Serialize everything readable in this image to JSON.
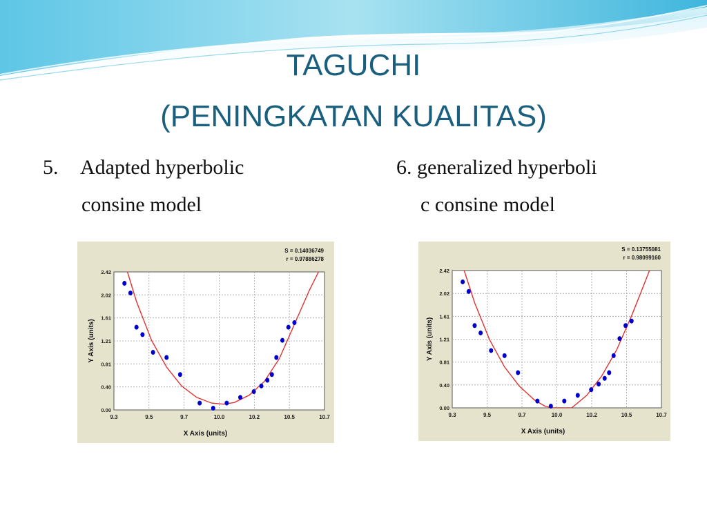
{
  "slide": {
    "title_line1": "TAGUCHI",
    "title_line2": "(PENINGKATAN KUALITAS)"
  },
  "left_caption": {
    "number": "5.",
    "line1": "Adapted hyperbolic",
    "line2": "consine model"
  },
  "right_caption": {
    "line1": "6. generalized hyperboli",
    "line2": "c consine model"
  },
  "colors": {
    "title": "#1b5f7e",
    "chart_panel": "#e6e3cc",
    "point": "#0000cc",
    "curve": "#e03030",
    "grid": "#a0a0a0"
  },
  "chart_data": [
    {
      "type": "scatter",
      "stats": [
        "S = 0.14036749",
        "r = 0.97886278"
      ],
      "xlabel": "X Axis (units)",
      "ylabel": "Y Axis (units)",
      "xlim": [
        9.3,
        10.7
      ],
      "ylim": [
        0.0,
        2.42
      ],
      "xticks": [
        "9.3",
        "9.5",
        "9.7",
        "10.0",
        "10.2",
        "10.5",
        "10.7"
      ],
      "yticks": [
        "0.00",
        "0.40",
        "0.81",
        "1.21",
        "1.61",
        "2.02",
        "2.42"
      ],
      "grid": true,
      "points": [
        {
          "x": 9.37,
          "y": 2.22
        },
        {
          "x": 9.41,
          "y": 2.05
        },
        {
          "x": 9.45,
          "y": 1.45
        },
        {
          "x": 9.49,
          "y": 1.32
        },
        {
          "x": 9.56,
          "y": 1.01
        },
        {
          "x": 9.65,
          "y": 0.92
        },
        {
          "x": 9.74,
          "y": 0.62
        },
        {
          "x": 9.87,
          "y": 0.12
        },
        {
          "x": 9.96,
          "y": 0.03
        },
        {
          "x": 10.05,
          "y": 0.12
        },
        {
          "x": 10.14,
          "y": 0.22
        },
        {
          "x": 10.23,
          "y": 0.32
        },
        {
          "x": 10.28,
          "y": 0.42
        },
        {
          "x": 10.32,
          "y": 0.52
        },
        {
          "x": 10.35,
          "y": 0.62
        },
        {
          "x": 10.38,
          "y": 0.92
        },
        {
          "x": 10.42,
          "y": 1.22
        },
        {
          "x": 10.46,
          "y": 1.45
        },
        {
          "x": 10.5,
          "y": 1.53
        }
      ],
      "curve": [
        {
          "x": 9.39,
          "y": 2.42
        },
        {
          "x": 9.45,
          "y": 1.9
        },
        {
          "x": 9.55,
          "y": 1.22
        },
        {
          "x": 9.65,
          "y": 0.75
        },
        {
          "x": 9.75,
          "y": 0.42
        },
        {
          "x": 9.85,
          "y": 0.22
        },
        {
          "x": 9.95,
          "y": 0.12
        },
        {
          "x": 10.03,
          "y": 0.1
        },
        {
          "x": 10.1,
          "y": 0.13
        },
        {
          "x": 10.2,
          "y": 0.26
        },
        {
          "x": 10.3,
          "y": 0.5
        },
        {
          "x": 10.4,
          "y": 0.9
        },
        {
          "x": 10.5,
          "y": 1.5
        },
        {
          "x": 10.6,
          "y": 2.1
        },
        {
          "x": 10.66,
          "y": 2.42
        }
      ]
    },
    {
      "type": "scatter",
      "stats": [
        "S = 0.13755081",
        "r = 0.98099160"
      ],
      "xlabel": "X Axis (units)",
      "ylabel": "Y Axis (units)",
      "xlim": [
        9.3,
        10.7
      ],
      "ylim": [
        0.0,
        2.42
      ],
      "xticks": [
        "9.3",
        "9.5",
        "9.7",
        "10.0",
        "10.2",
        "10.5",
        "10.7"
      ],
      "yticks": [
        "0.00",
        "0.40",
        "0.81",
        "1.21",
        "1.61",
        "2.02",
        "2.42"
      ],
      "grid": true,
      "points": [
        {
          "x": 9.37,
          "y": 2.22
        },
        {
          "x": 9.41,
          "y": 2.05
        },
        {
          "x": 9.45,
          "y": 1.45
        },
        {
          "x": 9.49,
          "y": 1.32
        },
        {
          "x": 9.56,
          "y": 1.01
        },
        {
          "x": 9.65,
          "y": 0.92
        },
        {
          "x": 9.74,
          "y": 0.62
        },
        {
          "x": 9.87,
          "y": 0.12
        },
        {
          "x": 9.96,
          "y": 0.03
        },
        {
          "x": 10.05,
          "y": 0.12
        },
        {
          "x": 10.14,
          "y": 0.22
        },
        {
          "x": 10.23,
          "y": 0.32
        },
        {
          "x": 10.28,
          "y": 0.42
        },
        {
          "x": 10.32,
          "y": 0.52
        },
        {
          "x": 10.35,
          "y": 0.62
        },
        {
          "x": 10.38,
          "y": 0.92
        },
        {
          "x": 10.42,
          "y": 1.22
        },
        {
          "x": 10.46,
          "y": 1.45
        },
        {
          "x": 10.5,
          "y": 1.53
        }
      ],
      "curve": [
        {
          "x": 9.38,
          "y": 2.42
        },
        {
          "x": 9.45,
          "y": 1.85
        },
        {
          "x": 9.55,
          "y": 1.2
        },
        {
          "x": 9.65,
          "y": 0.72
        },
        {
          "x": 9.75,
          "y": 0.38
        },
        {
          "x": 9.85,
          "y": 0.14
        },
        {
          "x": 9.92,
          "y": 0.03
        },
        {
          "x": 9.97,
          "y": 0.0
        },
        {
          "x": 10.1,
          "y": 0.0
        },
        {
          "x": 10.2,
          "y": 0.22
        },
        {
          "x": 10.3,
          "y": 0.56
        },
        {
          "x": 10.4,
          "y": 1.02
        },
        {
          "x": 10.5,
          "y": 1.62
        },
        {
          "x": 10.58,
          "y": 2.15
        },
        {
          "x": 10.62,
          "y": 2.42
        }
      ]
    }
  ]
}
